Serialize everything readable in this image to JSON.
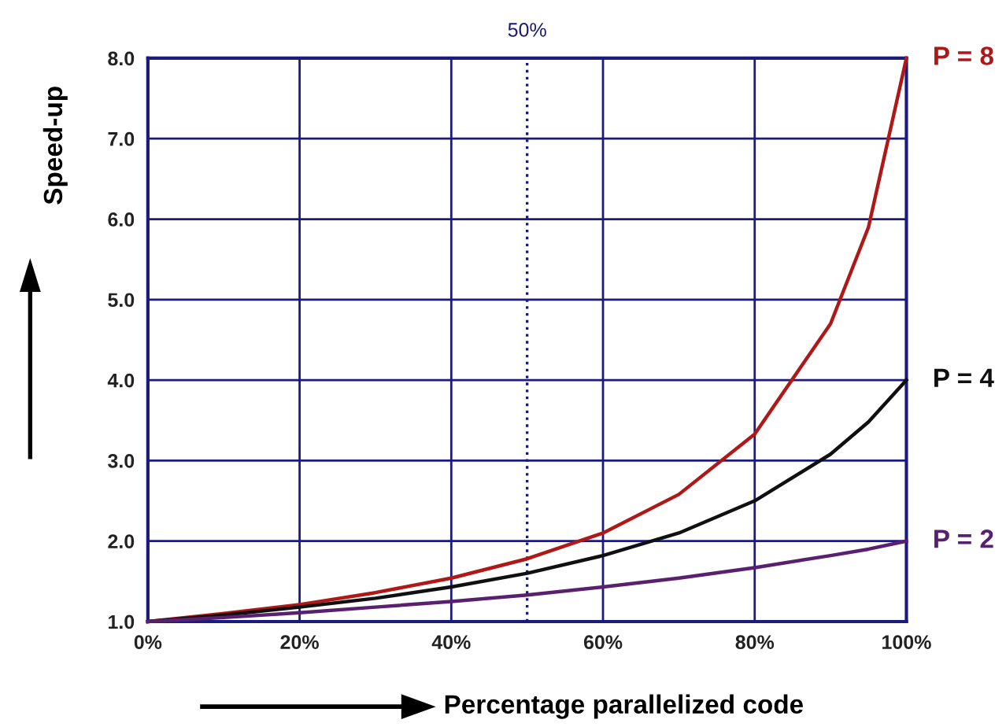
{
  "chart_data": {
    "type": "line",
    "xlabel": "Percentage parallelized code",
    "ylabel": "Speed-up",
    "x": [
      0,
      10,
      20,
      30,
      40,
      50,
      60,
      70,
      80,
      90,
      95,
      100
    ],
    "series": [
      {
        "name": "P = 8",
        "color": "#b01818",
        "values": [
          1.0,
          1.1,
          1.21,
          1.36,
          1.54,
          1.78,
          2.1,
          2.58,
          3.33,
          4.7,
          5.9,
          8.0
        ]
      },
      {
        "name": "P = 4",
        "color": "#101010",
        "values": [
          1.0,
          1.08,
          1.18,
          1.29,
          1.43,
          1.6,
          1.82,
          2.1,
          2.5,
          3.08,
          3.48,
          4.0
        ]
      },
      {
        "name": "P = 2",
        "color": "#5a2070",
        "values": [
          1.0,
          1.05,
          1.11,
          1.18,
          1.25,
          1.33,
          1.43,
          1.54,
          1.67,
          1.82,
          1.9,
          2.0
        ]
      }
    ],
    "xlim": [
      0,
      100
    ],
    "ylim": [
      1,
      8
    ],
    "xticks": [
      {
        "value": 0,
        "label": "0%"
      },
      {
        "value": 20,
        "label": "20%"
      },
      {
        "value": 40,
        "label": "40%"
      },
      {
        "value": 60,
        "label": "60%"
      },
      {
        "value": 80,
        "label": "80%"
      },
      {
        "value": 100,
        "label": "100%"
      }
    ],
    "yticks": [
      {
        "value": 1,
        "label": "1.0"
      },
      {
        "value": 2,
        "label": "2.0"
      },
      {
        "value": 3,
        "label": "3.0"
      },
      {
        "value": 4,
        "label": "4.0"
      },
      {
        "value": 5,
        "label": "5.0"
      },
      {
        "value": 6,
        "label": "6.0"
      },
      {
        "value": 7,
        "label": "7.0"
      },
      {
        "value": 8,
        "label": "8.0"
      }
    ],
    "ref_lines": [
      {
        "axis": "x",
        "value": 50,
        "label": "50%",
        "color": "#1a1a70",
        "line_style": "dotted"
      }
    ],
    "grid": true,
    "legend": false,
    "marker": "none",
    "line_style": "solid"
  }
}
